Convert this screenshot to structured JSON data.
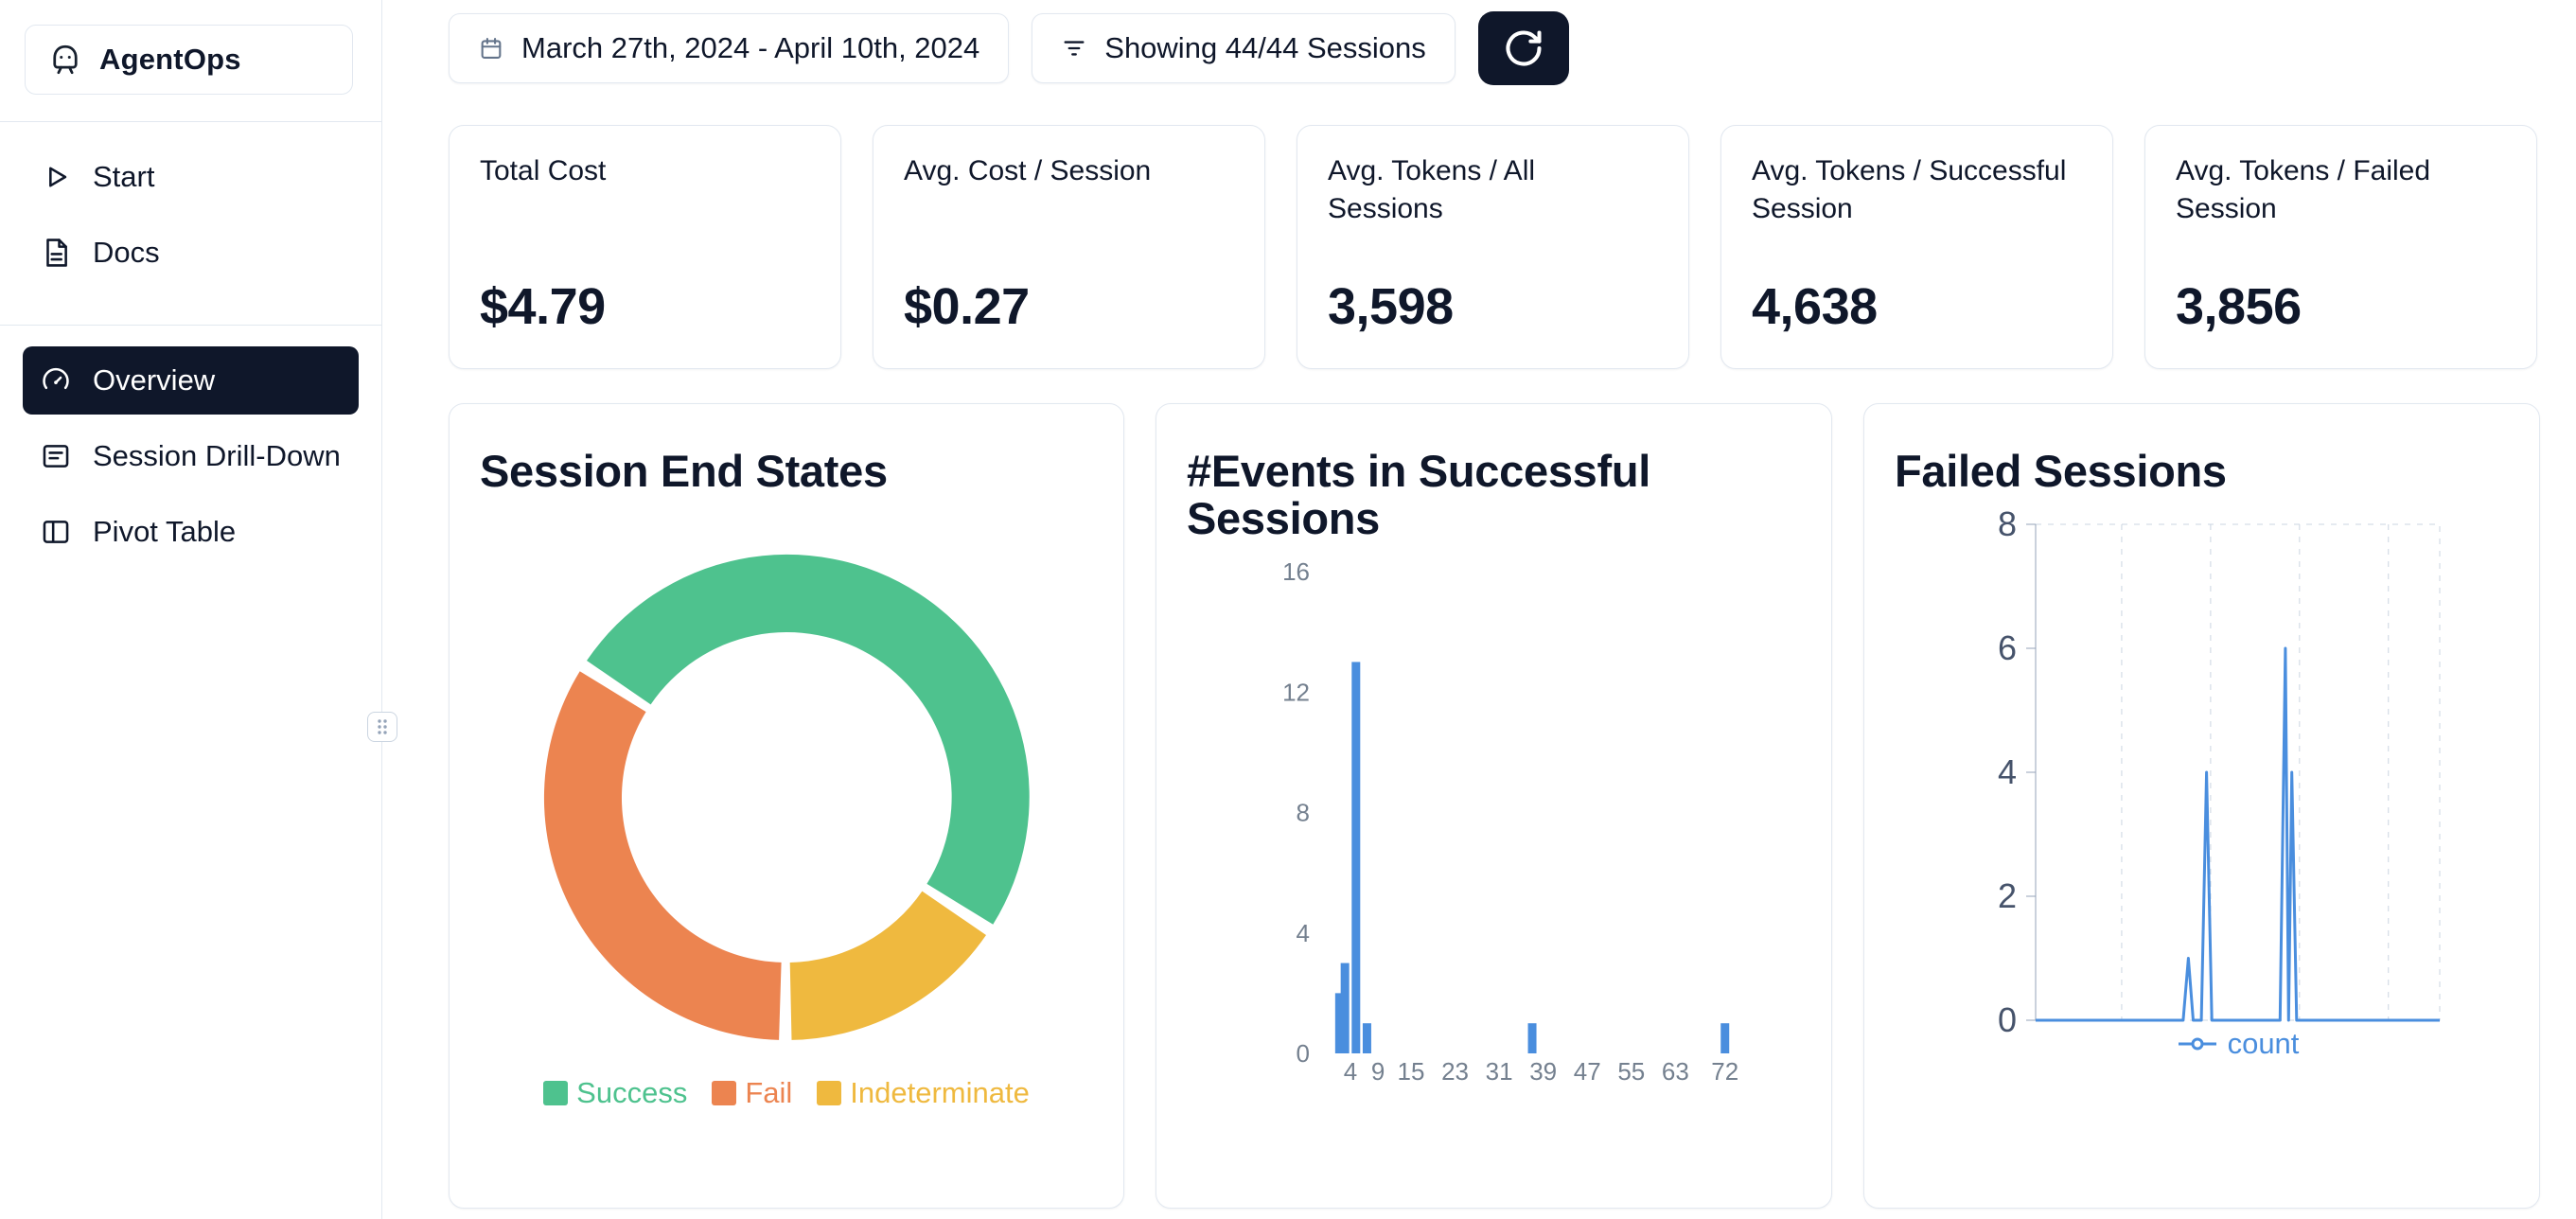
{
  "app": {
    "name": "AgentOps"
  },
  "sidebar": {
    "items": [
      {
        "label": "Start"
      },
      {
        "label": "Docs"
      },
      {
        "label": "Overview",
        "active": true
      },
      {
        "label": "Session Drill-Down"
      },
      {
        "label": "Pivot Table"
      }
    ]
  },
  "toolbar": {
    "date_range": "March 27th, 2024 - April 10th, 2024",
    "sessions_filter": "Showing 44/44 Sessions"
  },
  "stats": [
    {
      "label": "Total Cost",
      "value": "$4.79"
    },
    {
      "label": "Avg. Cost / Session",
      "value": "$0.27"
    },
    {
      "label": "Avg. Tokens / All Sessions",
      "value": "3,598"
    },
    {
      "label": "Avg. Tokens / Successful Session",
      "value": "4,638"
    },
    {
      "label": "Avg. Tokens / Failed Session",
      "value": "3,856"
    }
  ],
  "colors": {
    "navy": "#0F172A",
    "border": "#E2E8F0",
    "accent_blue": "#4A8EDE",
    "success": "#4EC28E",
    "fail": "#EC8450",
    "indeterminate": "#EFB93F",
    "axis_muted": "#74808F",
    "axis_dark": "#46536B",
    "grid": "#CBD5E1"
  },
  "chart_data": [
    {
      "type": "pie",
      "donut": true,
      "title": "Session End States",
      "labels": [
        "Success",
        "Fail",
        "Indeterminate"
      ],
      "values": [
        22,
        15,
        7
      ],
      "colors": [
        "#4EC28E",
        "#EC8450",
        "#EFB93F"
      ],
      "rotation": -57,
      "pad_deg": 3,
      "order": [
        "Success",
        "Indeterminate",
        "Fail"
      ],
      "legend_position": "bottom"
    },
    {
      "type": "bar",
      "title": "#Events in Successful Sessions",
      "x": [
        2,
        3,
        5,
        7,
        37,
        72
      ],
      "values": [
        2,
        3,
        13,
        1,
        1,
        1
      ],
      "xlim": [
        0,
        76
      ],
      "ylim": [
        0,
        16
      ],
      "yticks": [
        0,
        4,
        8,
        12,
        16
      ],
      "xticks": [
        4,
        9,
        15,
        23,
        31,
        39,
        47,
        55,
        63,
        72
      ],
      "color": "#4A8EDE",
      "grid": false
    },
    {
      "type": "line",
      "title": "Failed Sessions",
      "ylim": [
        0,
        8
      ],
      "yticks": [
        0,
        2,
        4,
        6,
        8
      ],
      "color": "#4A8EDE",
      "grid": "dashed",
      "legend_position": "bottom",
      "series": [
        {
          "name": "count",
          "x": [
            0,
            34,
            36.5,
            37.8,
            39,
            41,
            42.3,
            43.6,
            50,
            58,
            60.5,
            61.8,
            62.6,
            63.4,
            64.6,
            66,
            100
          ],
          "y": [
            0,
            0,
            0,
            1,
            0,
            0,
            4,
            0,
            0,
            0,
            0,
            6,
            0,
            4,
            0,
            0,
            0
          ]
        }
      ]
    }
  ]
}
